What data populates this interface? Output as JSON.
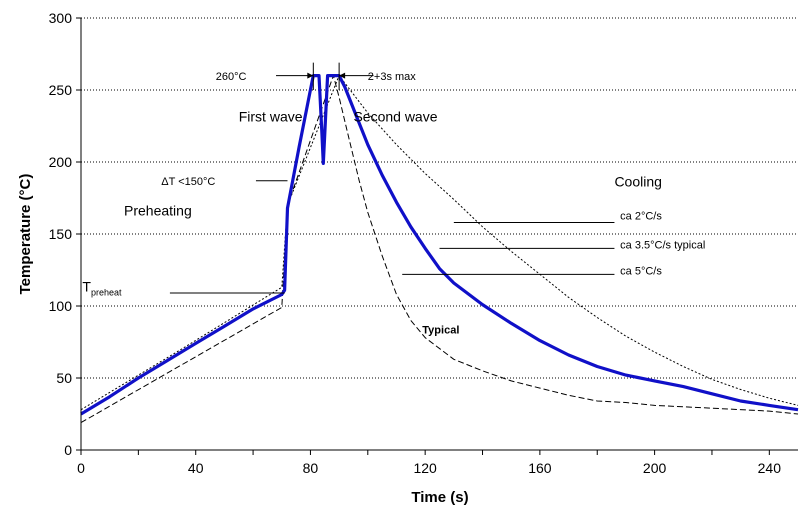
{
  "chart_data": {
    "type": "line",
    "title": "",
    "xlabel": "Time (s)",
    "ylabel": "Temperature (°C)",
    "xlim": [
      0,
      250
    ],
    "ylim": [
      0,
      300
    ],
    "xticks": [
      "0",
      "40",
      "80",
      "120",
      "160",
      "200",
      "240"
    ],
    "yticks": [
      "0",
      "50",
      "100",
      "150",
      "200",
      "250",
      "300"
    ],
    "grid": "horizontal dotted",
    "legend": "none",
    "colors": {
      "typical": "#1010c8",
      "limits": "#000000"
    },
    "series": [
      {
        "name": "Typical",
        "style": "solid-thick",
        "points": [
          [
            0,
            25
          ],
          [
            10,
            37
          ],
          [
            20,
            50
          ],
          [
            30,
            62
          ],
          [
            40,
            74
          ],
          [
            50,
            86
          ],
          [
            60,
            98
          ],
          [
            70,
            108
          ],
          [
            71,
            111
          ],
          [
            72,
            168
          ],
          [
            76,
            210
          ],
          [
            78,
            230
          ],
          [
            80,
            250
          ],
          [
            81,
            260
          ],
          [
            83,
            260
          ],
          [
            84,
            220
          ],
          [
            84.5,
            199
          ],
          [
            85,
            220
          ],
          [
            86,
            260
          ],
          [
            90,
            260
          ],
          [
            92,
            252
          ],
          [
            96,
            232
          ],
          [
            100,
            212
          ],
          [
            105,
            191
          ],
          [
            110,
            172
          ],
          [
            115,
            155
          ],
          [
            120,
            140
          ],
          [
            125,
            126
          ],
          [
            130,
            116
          ],
          [
            140,
            101
          ],
          [
            150,
            88
          ],
          [
            160,
            76
          ],
          [
            170,
            66
          ],
          [
            180,
            58
          ],
          [
            190,
            52
          ],
          [
            200,
            48
          ],
          [
            210,
            44
          ],
          [
            220,
            39
          ],
          [
            230,
            34
          ],
          [
            240,
            31
          ],
          [
            250,
            28
          ]
        ]
      },
      {
        "name": "ca 2°C/s",
        "style": "dotted",
        "points": [
          [
            0,
            28
          ],
          [
            35,
            70
          ],
          [
            70,
            113
          ],
          [
            72,
            170
          ],
          [
            90,
            260
          ],
          [
            95,
            247
          ],
          [
            100,
            234
          ],
          [
            110,
            212
          ],
          [
            120,
            192
          ],
          [
            130,
            174
          ],
          [
            140,
            155
          ],
          [
            150,
            138
          ],
          [
            160,
            122
          ],
          [
            170,
            106
          ],
          [
            180,
            92
          ],
          [
            190,
            79
          ],
          [
            200,
            68
          ],
          [
            210,
            58
          ],
          [
            220,
            49
          ],
          [
            230,
            42
          ],
          [
            240,
            36
          ],
          [
            250,
            31
          ]
        ]
      },
      {
        "name": "ca 5°C/s",
        "style": "dashed",
        "points": [
          [
            0,
            19
          ],
          [
            35,
            59
          ],
          [
            70,
            99
          ],
          [
            72,
            170
          ],
          [
            88,
            260
          ],
          [
            90,
            245
          ],
          [
            93,
            220
          ],
          [
            97,
            187
          ],
          [
            100,
            165
          ],
          [
            105,
            135
          ],
          [
            110,
            108
          ],
          [
            115,
            90
          ],
          [
            120,
            78
          ],
          [
            130,
            63
          ],
          [
            140,
            55
          ],
          [
            150,
            48
          ],
          [
            160,
            43
          ],
          [
            170,
            38
          ],
          [
            180,
            34
          ],
          [
            190,
            33
          ],
          [
            200,
            31
          ],
          [
            220,
            29
          ],
          [
            240,
            27
          ],
          [
            250,
            25
          ]
        ]
      }
    ],
    "annotations": [
      {
        "text": "260°C",
        "x": 47,
        "y": 257
      },
      {
        "text": "2+3s max",
        "x": 100,
        "y": 257
      },
      {
        "text": "First wave",
        "x": 55,
        "y": 228
      },
      {
        "text": "Second wave",
        "x": 95,
        "y": 228
      },
      {
        "text": "ΔT <150°C",
        "x": 28,
        "y": 184
      },
      {
        "text": "Preheating",
        "x": 15,
        "y": 163
      },
      {
        "text": "Cooling",
        "x": 186,
        "y": 183
      },
      {
        "text": "ca 2°C/s",
        "x": 188,
        "y": 160
      },
      {
        "text": "ca 3.5°C/s typical",
        "x": 188,
        "y": 140
      },
      {
        "text": "ca 5°C/s",
        "x": 188,
        "y": 122
      },
      {
        "text": "T",
        "sub": "preheat",
        "x": 0.5,
        "y": 110
      },
      {
        "text": "Typical",
        "x": 119,
        "y": 81
      }
    ]
  }
}
